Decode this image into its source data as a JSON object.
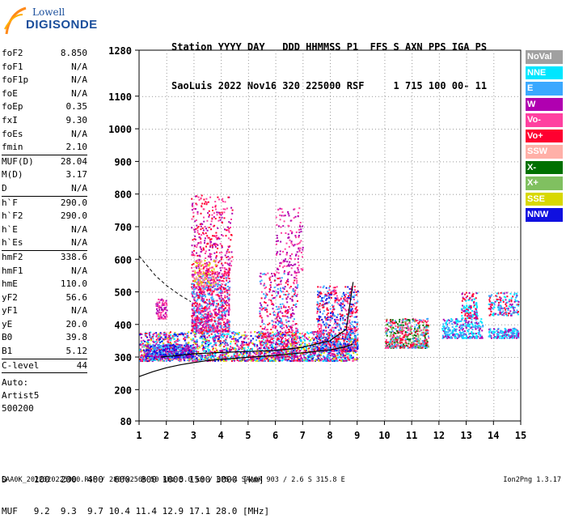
{
  "logo": {
    "line1": "Lowell",
    "line2": "DIGISONDE"
  },
  "header": {
    "labels": "Station YYYY DAY   DDD HHMMSS P1  FFS S AXN PPS IGA PS",
    "values": "SaoLuis 2022 Nov16 320 225000 RSF     1 715 100 00- 11"
  },
  "params": {
    "group1": [
      {
        "label": "foF2",
        "value": "8.850"
      },
      {
        "label": "foF1",
        "value": "N/A"
      },
      {
        "label": "foF1p",
        "value": "N/A"
      },
      {
        "label": "foE",
        "value": "N/A"
      },
      {
        "label": "foEp",
        "value": "0.35"
      },
      {
        "label": "fxI",
        "value": "9.30"
      },
      {
        "label": "foEs",
        "value": "N/A"
      },
      {
        "label": "fmin",
        "value": "2.10"
      }
    ],
    "group2": [
      {
        "label": "MUF(D)",
        "value": "28.04"
      },
      {
        "label": "M(D)",
        "value": "3.17"
      },
      {
        "label": "D",
        "value": "N/A"
      }
    ],
    "group3": [
      {
        "label": "h`F",
        "value": "290.0"
      },
      {
        "label": "h`F2",
        "value": "290.0"
      },
      {
        "label": "h`E",
        "value": "N/A"
      },
      {
        "label": "h`Es",
        "value": "N/A"
      }
    ],
    "group4": [
      {
        "label": "hmF2",
        "value": "338.6"
      },
      {
        "label": "hmF1",
        "value": "N/A"
      },
      {
        "label": "hmE",
        "value": "110.0"
      },
      {
        "label": "yF2",
        "value": "56.6"
      },
      {
        "label": "yF1",
        "value": "N/A"
      },
      {
        "label": "yE",
        "value": "20.0"
      },
      {
        "label": "B0",
        "value": "39.8"
      },
      {
        "label": "B1",
        "value": "5.12"
      }
    ],
    "group5": [
      {
        "label": "C-level",
        "value": "44"
      }
    ],
    "auto": [
      "Auto:",
      "Artist5",
      "500200"
    ]
  },
  "legend": [
    {
      "label": "NoVal",
      "color": "#a0a0a0"
    },
    {
      "label": "NNE",
      "color": "#00e6ff"
    },
    {
      "label": "E",
      "color": "#3aa8ff"
    },
    {
      "label": "W",
      "color": "#b000b0"
    },
    {
      "label": "Vo-",
      "color": "#ff40a0"
    },
    {
      "label": "Vo+",
      "color": "#ff0030"
    },
    {
      "label": "SSW",
      "color": "#ffb0a8"
    },
    {
      "label": "X-",
      "color": "#007000"
    },
    {
      "label": "X+",
      "color": "#80c060"
    },
    {
      "label": "SSE",
      "color": "#d8d800"
    },
    {
      "label": "NNW",
      "color": "#1010e0"
    }
  ],
  "muf_table": {
    "d_row": "D     100  200  400  600  800 1000 1500 3000 [km]",
    "muf_row": "MUF   9.2  9.3  9.7 10.4 11.4 12.9 17.1 28.0 [MHz]"
  },
  "footer": {
    "left": "SAA0K_2022320225000.RSF / 280fx256h 50 kHz 5.0 km / DPS-4 SAA0K 903 / 2.6 S 315.8 E",
    "right": "Ion2Png 1.3.17"
  },
  "chart_data": {
    "type": "scatter",
    "x_ticks": [
      "1",
      "2",
      "3",
      "4",
      "5",
      "6",
      "7",
      "8",
      "9",
      "10",
      "11",
      "12",
      "13",
      "14",
      "15"
    ],
    "y_ticks": [
      "80",
      "200",
      "300",
      "400",
      "500",
      "600",
      "700",
      "800",
      "900",
      "1000",
      "1100",
      "1280"
    ],
    "xlim": [
      1,
      15
    ],
    "ylim": [
      80,
      1280
    ],
    "y_tick_values": [
      80,
      200,
      300,
      400,
      500,
      600,
      700,
      800,
      900,
      1000,
      1100,
      1280
    ],
    "y_tick_pos": [
      0,
      0.0845,
      0.1724,
      0.2603,
      0.3482,
      0.4361,
      0.524,
      0.612,
      0.7,
      0.788,
      0.876,
      1.0
    ],
    "profile_curve": {
      "x": [
        1.0,
        1.5,
        2.0,
        2.5,
        3.0,
        3.5,
        4.0,
        5.0,
        6.0,
        7.0,
        8.0,
        8.5,
        8.85
      ],
      "y": [
        240,
        255,
        267,
        276,
        283,
        289,
        293,
        299,
        305,
        313,
        322,
        330,
        340
      ]
    },
    "dashed_curve": {
      "x": [
        1.0,
        1.3,
        1.6,
        2.0,
        2.5,
        2.9
      ],
      "y": [
        610,
        580,
        550,
        520,
        490,
        470
      ]
    },
    "trace_curve": {
      "x": [
        1.8,
        2.2,
        2.6,
        3.0,
        3.5,
        4.0,
        5.0,
        6.0,
        7.0,
        8.0,
        8.6,
        8.85
      ],
      "y": [
        300,
        303,
        306,
        310,
        312,
        314,
        317,
        320,
        330,
        350,
        385,
        530
      ]
    },
    "clusters": [
      {
        "f": [
          1.0,
          9.0
        ],
        "h": [
          290,
          380
        ],
        "n": 2200,
        "colors": [
          2,
          3,
          4,
          5,
          10,
          1,
          9
        ]
      },
      {
        "f": [
          2.9,
          4.3
        ],
        "h": [
          380,
          560
        ],
        "n": 900,
        "colors": [
          3,
          4,
          5,
          2
        ]
      },
      {
        "f": [
          2.9,
          4.4
        ],
        "h": [
          560,
          800
        ],
        "n": 350,
        "colors": [
          3,
          4,
          5
        ]
      },
      {
        "f": [
          1.6,
          2.0
        ],
        "h": [
          420,
          480
        ],
        "n": 80,
        "colors": [
          3,
          4
        ]
      },
      {
        "f": [
          3.0,
          3.8
        ],
        "h": [
          520,
          600
        ],
        "n": 120,
        "colors": [
          9,
          4,
          6
        ]
      },
      {
        "f": [
          5.4,
          6.8
        ],
        "h": [
          300,
          560
        ],
        "n": 500,
        "colors": [
          3,
          4,
          5,
          2
        ]
      },
      {
        "f": [
          6.0,
          7.0
        ],
        "h": [
          560,
          760
        ],
        "n": 150,
        "colors": [
          3,
          4
        ]
      },
      {
        "f": [
          7.5,
          9.0
        ],
        "h": [
          320,
          520
        ],
        "n": 700,
        "colors": [
          5,
          4,
          2,
          10
        ]
      },
      {
        "f": [
          10.0,
          11.6
        ],
        "h": [
          330,
          420
        ],
        "n": 500,
        "colors": [
          5,
          4,
          8,
          7,
          2
        ]
      },
      {
        "f": [
          12.1,
          13.6
        ],
        "h": [
          360,
          420
        ],
        "n": 300,
        "colors": [
          1,
          2,
          3
        ]
      },
      {
        "f": [
          12.8,
          13.4
        ],
        "h": [
          420,
          500
        ],
        "n": 120,
        "colors": [
          1,
          3,
          5
        ]
      },
      {
        "f": [
          13.8,
          14.9
        ],
        "h": [
          360,
          390
        ],
        "n": 160,
        "colors": [
          1,
          2,
          3
        ]
      },
      {
        "f": [
          13.8,
          14.9
        ],
        "h": [
          430,
          500
        ],
        "n": 160,
        "colors": [
          1,
          3,
          5,
          2
        ]
      },
      {
        "f": [
          1.2,
          3.0
        ],
        "h": [
          300,
          340
        ],
        "n": 400,
        "colors": [
          10,
          3,
          2
        ]
      }
    ]
  }
}
